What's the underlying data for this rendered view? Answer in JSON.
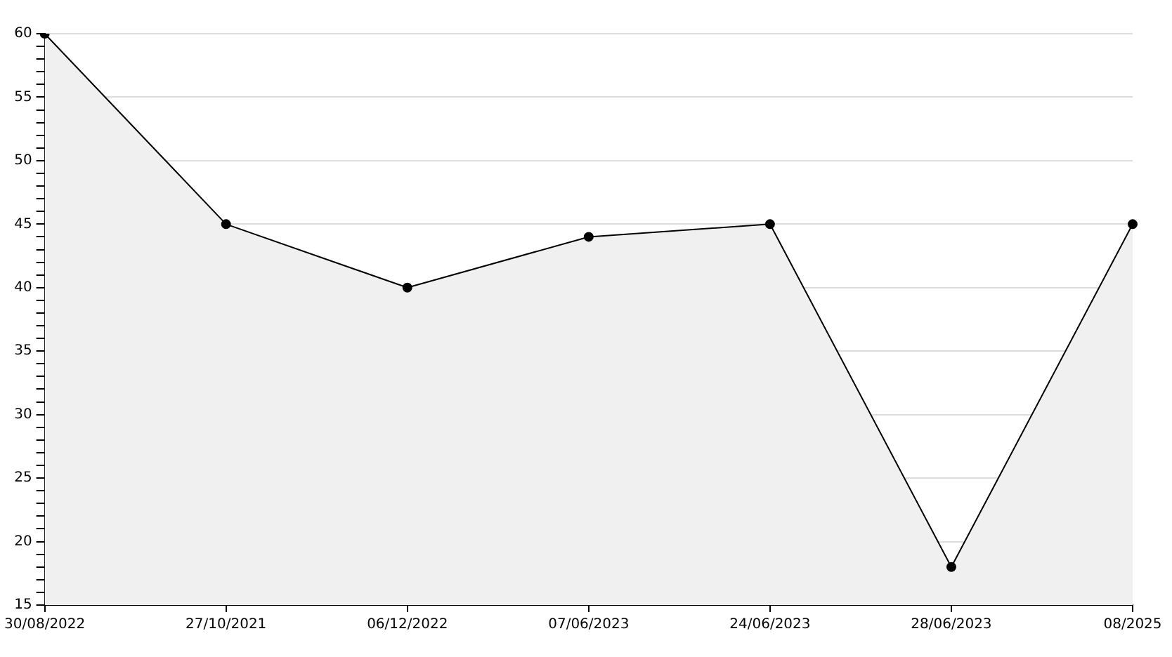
{
  "chart_data": {
    "type": "area",
    "categories": [
      "30/08/2022",
      "27/10/2021",
      "06/12/2022",
      "07/06/2023",
      "24/06/2023",
      "28/06/2023",
      "08/2025"
    ],
    "series": [
      {
        "color": "#000000",
        "values": [
          60,
          45,
          40,
          44,
          45,
          18,
          45
        ]
      }
    ],
    "ylim": [
      15,
      60
    ],
    "yticks": [
      15,
      {
        "value": 16,
        "label": null
      },
      {
        "value": 17,
        "label": null
      },
      {
        "value": 18,
        "label": null
      },
      {
        "value": 19,
        "label": null
      },
      20,
      {
        "value": 21,
        "label": null
      },
      {
        "value": 22,
        "label": null
      },
      {
        "value": 23,
        "label": null
      },
      {
        "value": 24,
        "label": null
      },
      25,
      {
        "value": 26,
        "label": null
      },
      {
        "value": 27,
        "label": null
      },
      {
        "value": 28,
        "label": null
      },
      {
        "value": 29,
        "label": null
      },
      30,
      {
        "value": 31,
        "label": null
      },
      {
        "value": 32,
        "label": null
      },
      {
        "value": 33,
        "label": null
      },
      {
        "value": 34,
        "label": null
      },
      35,
      {
        "value": 36,
        "label": null
      },
      {
        "value": 37,
        "label": null
      },
      {
        "value": 38,
        "label": null
      },
      {
        "value": 39,
        "label": null
      },
      40,
      {
        "value": 41,
        "label": null
      },
      {
        "value": 42,
        "label": null
      },
      {
        "value": 43,
        "label": null
      },
      {
        "value": 44,
        "label": null
      },
      45,
      {
        "value": 46,
        "label": null
      },
      {
        "value": 47,
        "label": null
      },
      {
        "value": 48,
        "label": null
      },
      {
        "value": 49,
        "label": null
      },
      50,
      {
        "value": 51,
        "label": null
      },
      {
        "value": 52,
        "label": null
      },
      {
        "value": 53,
        "label": null
      },
      {
        "value": 54,
        "label": null
      },
      55,
      {
        "value": 56,
        "label": null
      },
      {
        "value": 57,
        "label": null
      },
      {
        "value": 58,
        "label": null
      },
      {
        "value": 59,
        "label": null
      },
      60
    ],
    "grid": "y",
    "marker": "circle",
    "line_style": "solid",
    "legend": false
  }
}
